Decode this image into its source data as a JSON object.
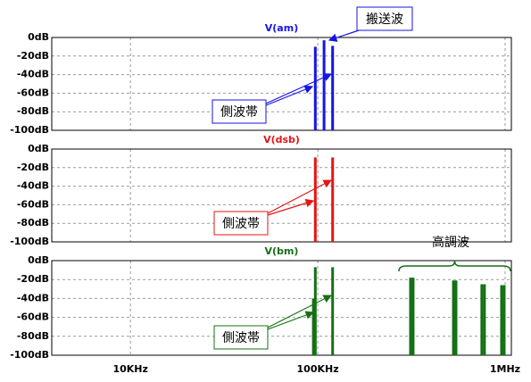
{
  "chart_data": [
    {
      "type": "stem",
      "title": "V(am)",
      "color": "#1515e6",
      "log_x": true,
      "grid": true,
      "x": [
        97000,
        108000,
        120000
      ],
      "values": [
        -10,
        -3,
        -9
      ],
      "xlim": [
        3800,
        1080000
      ],
      "xticks": [
        10000,
        100000,
        1000000
      ],
      "ylim": [
        -100,
        0
      ],
      "yticks": [
        {
          "value": 0,
          "label": "0dB"
        },
        {
          "value": -20,
          "label": "-20dB"
        },
        {
          "value": -40,
          "label": "-40dB"
        },
        {
          "value": -60,
          "label": "-60dB"
        },
        {
          "value": -80,
          "label": "-80dB"
        },
        {
          "value": -100,
          "label": "-100dB"
        }
      ],
      "annotations": [
        "側波帯",
        "搬送波"
      ]
    },
    {
      "type": "stem",
      "title": "V(dsb)",
      "color": "#e61515",
      "log_x": true,
      "grid": true,
      "x": [
        97000,
        120000
      ],
      "values": [
        -9,
        -9
      ],
      "xlim": [
        3800,
        1080000
      ],
      "xticks": [
        10000,
        100000,
        1000000
      ],
      "ylim": [
        -100,
        0
      ],
      "yticks": [
        {
          "value": 0,
          "label": "0dB"
        },
        {
          "value": -20,
          "label": "-20dB"
        },
        {
          "value": -40,
          "label": "-40dB"
        },
        {
          "value": -60,
          "label": "-60dB"
        },
        {
          "value": -80,
          "label": "-80dB"
        },
        {
          "value": -100,
          "label": "-100dB"
        }
      ],
      "annotations": [
        "側波帯"
      ]
    },
    {
      "type": "stem",
      "title": "V(bm)",
      "color": "#157015",
      "log_x": true,
      "grid": true,
      "x": [
        94700,
        97000,
        120000,
        312600,
        323000,
        529600,
        547000,
        751000,
        776000,
        957000,
        989000
      ],
      "values": [
        -40,
        -7,
        -7,
        -18,
        -18,
        -21,
        -21,
        -25,
        -25,
        -26,
        -26
      ],
      "xlim": [
        3800,
        1080000
      ],
      "xticks": [
        {
          "value": 10000,
          "label": "10KHz"
        },
        {
          "value": 100000,
          "label": "100KHz"
        },
        {
          "value": 1000000,
          "label": "1MHz"
        }
      ],
      "ylim": [
        -100,
        0
      ],
      "yticks": [
        {
          "value": 0,
          "label": "0dB"
        },
        {
          "value": -20,
          "label": "-20dB"
        },
        {
          "value": -40,
          "label": "-40dB"
        },
        {
          "value": -60,
          "label": "-60dB"
        },
        {
          "value": -80,
          "label": "-80dB"
        },
        {
          "value": -100,
          "label": "-100dB"
        }
      ],
      "annotations": [
        "側波帯",
        "高調波"
      ]
    }
  ]
}
